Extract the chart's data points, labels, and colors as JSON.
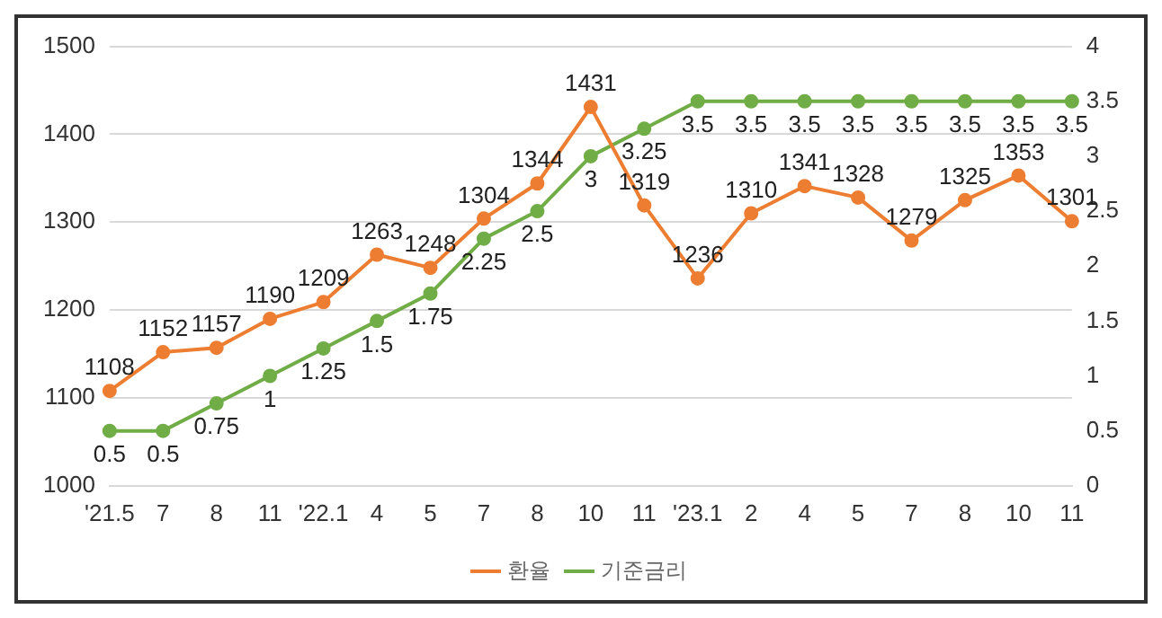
{
  "chart_data": {
    "type": "line",
    "categories": [
      "'21.5",
      "7",
      "8",
      "11",
      "'22.1",
      "4",
      "5",
      "7",
      "8",
      "10",
      "11",
      "'23.1",
      "2",
      "4",
      "5",
      "7",
      "8",
      "10",
      "11"
    ],
    "series": [
      {
        "name": "환율",
        "color": "#ed7d31",
        "values": [
          1108,
          1152,
          1157,
          1190,
          1209,
          1263,
          1248,
          1304,
          1344,
          1431,
          1319,
          1236,
          1310,
          1341,
          1328,
          1279,
          1325,
          1353,
          1301
        ]
      },
      {
        "name": "기준금리",
        "color": "#70ad47",
        "axis": "y2",
        "values": [
          0.5,
          0.5,
          0.75,
          1,
          1.25,
          1.5,
          1.75,
          2.25,
          2.5,
          3,
          3.25,
          3.5,
          3.5,
          3.5,
          3.5,
          3.5,
          3.5,
          3.5,
          3.5
        ]
      }
    ],
    "ylim": [
      1000,
      1500
    ],
    "yticks": [
      1000,
      1100,
      1200,
      1300,
      1400,
      1500
    ],
    "y2lim": [
      0,
      4
    ],
    "y2ticks": [
      0,
      0.5,
      1,
      1.5,
      2,
      2.5,
      3,
      3.5,
      4
    ],
    "grid": "y",
    "legend": "bottom",
    "marker": "circle",
    "line_style": "solid",
    "data_labels": true
  }
}
